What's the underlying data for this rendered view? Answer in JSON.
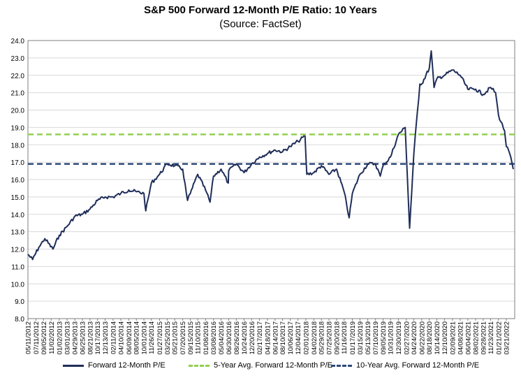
{
  "title": "S&P 500 Forward 12-Month P/E Ratio: 10 Years",
  "subtitle": "(Source: FactSet)",
  "colors": {
    "series": "#1f2d58",
    "avg5": "#92d050",
    "avg10": "#2e4a7a",
    "gridline": "#d9d9d9",
    "axis": "#7f7f7f"
  },
  "legend": {
    "series": "Forward 12-Month P/E",
    "avg5": "5-Year Avg. Forward 12-Month P/E",
    "avg10": "10-Year Avg. Forward 12-Month P/E"
  },
  "chart_data": {
    "type": "line",
    "title": "S&P 500 Forward 12-Month P/E Ratio: 10 Years",
    "subtitle": "(Source: FactSet)",
    "ylim": [
      8.0,
      24.0
    ],
    "yticks": [
      "8.0",
      "9.0",
      "10.0",
      "11.0",
      "12.0",
      "13.0",
      "14.0",
      "15.0",
      "16.0",
      "17.0",
      "18.0",
      "19.0",
      "20.0",
      "21.0",
      "22.0",
      "23.0",
      "24.0"
    ],
    "xticks": [
      "05/11/2012",
      "07/11/2012",
      "09/05/2012",
      "11/02/2012",
      "01/02/2013",
      "03/01/2013",
      "04/29/2013",
      "06/25/2013",
      "08/21/2013",
      "10/17/2013",
      "12/13/2013",
      "02/11/2014",
      "04/10/2014",
      "06/09/2014",
      "08/05/2014",
      "10/01/2014",
      "11/26/2014",
      "01/27/2015",
      "03/25/2015",
      "05/21/2015",
      "07/20/2015",
      "09/15/2015",
      "11/10/2015",
      "01/08/2016",
      "03/08/2016",
      "05/04/2016",
      "06/30/2016",
      "08/26/2016",
      "10/24/2016",
      "12/20/2016",
      "02/17/2017",
      "04/18/2017",
      "06/14/2017",
      "08/10/2017",
      "10/06/2017",
      "12/04/2017",
      "02/01/2018",
      "04/02/2018",
      "05/29/2018",
      "07/25/2018",
      "09/20/2018",
      "11/16/2018",
      "01/17/2019",
      "03/15/2019",
      "05/13/2019",
      "07/10/2019",
      "09/05/2019",
      "10/31/2019",
      "12/30/2019",
      "02/27/2020",
      "04/24/2020",
      "06/22/2020",
      "08/18/2020",
      "10/14/2020",
      "12/10/2020",
      "02/09/2021",
      "04/08/2021",
      "06/04/2021",
      "08/02/2021",
      "09/28/2021",
      "11/23/2021",
      "01/21/2022",
      "03/21/2022"
    ],
    "grid": true,
    "legend_position": "bottom",
    "series": [
      {
        "name": "Forward 12-Month P/E",
        "x": [
          "05/11/2012",
          "06/15/2012",
          "08/01/2012",
          "09/15/2012",
          "11/15/2012",
          "01/02/2013",
          "03/01/2013",
          "05/01/2013",
          "06/25/2013",
          "08/21/2013",
          "10/17/2013",
          "12/13/2013",
          "02/11/2014",
          "04/10/2014",
          "06/09/2014",
          "08/05/2014",
          "10/01/2014",
          "10/15/2014",
          "11/26/2014",
          "01/27/2015",
          "03/25/2015",
          "05/21/2015",
          "07/20/2015",
          "08/25/2015",
          "09/15/2015",
          "11/10/2015",
          "01/08/2016",
          "02/11/2016",
          "03/08/2016",
          "05/04/2016",
          "06/27/2016",
          "06/30/2016",
          "08/26/2016",
          "10/24/2016",
          "12/20/2016",
          "02/17/2017",
          "04/18/2017",
          "06/14/2017",
          "08/10/2017",
          "10/06/2017",
          "12/04/2017",
          "01/26/2018",
          "02/08/2018",
          "04/02/2018",
          "05/29/2018",
          "07/25/2018",
          "09/20/2018",
          "11/16/2018",
          "12/24/2018",
          "01/17/2019",
          "03/15/2019",
          "05/13/2019",
          "07/10/2019",
          "08/15/2019",
          "09/05/2019",
          "10/31/2019",
          "12/30/2019",
          "02/19/2020",
          "03/23/2020",
          "04/24/2020",
          "06/08/2020",
          "06/22/2020",
          "08/18/2020",
          "09/02/2020",
          "09/23/2020",
          "10/14/2020",
          "12/10/2020",
          "02/09/2021",
          "04/08/2021",
          "06/04/2021",
          "08/02/2021",
          "09/28/2021",
          "11/23/2021",
          "12/30/2021",
          "01/21/2022",
          "03/08/2022",
          "03/21/2022",
          "04/15/2022",
          "05/12/2022"
        ],
        "y": [
          11.7,
          11.4,
          12.1,
          12.6,
          12.0,
          12.8,
          13.3,
          13.9,
          14.0,
          14.3,
          14.8,
          15.0,
          15.0,
          15.2,
          15.4,
          15.3,
          15.2,
          14.2,
          15.8,
          16.3,
          16.9,
          16.8,
          16.6,
          14.8,
          15.2,
          16.3,
          15.4,
          14.7,
          16.2,
          16.6,
          15.8,
          16.5,
          16.9,
          16.4,
          16.9,
          17.3,
          17.5,
          17.7,
          17.6,
          17.9,
          18.2,
          18.5,
          16.3,
          16.4,
          16.8,
          16.3,
          16.6,
          15.3,
          13.8,
          15.2,
          16.3,
          16.9,
          16.9,
          16.2,
          16.8,
          17.3,
          18.6,
          19.0,
          13.2,
          17.5,
          21.5,
          21.5,
          22.4,
          23.4,
          21.3,
          21.8,
          22.0,
          22.3,
          22.0,
          21.2,
          21.2,
          20.9,
          21.3,
          21.0,
          19.7,
          18.8,
          17.9,
          17.5,
          16.6
        ]
      },
      {
        "name": "5-Year Avg. Forward 12-Month P/E",
        "value": 18.6
      },
      {
        "name": "10-Year Avg. Forward 12-Month P/E",
        "value": 16.9
      }
    ]
  }
}
